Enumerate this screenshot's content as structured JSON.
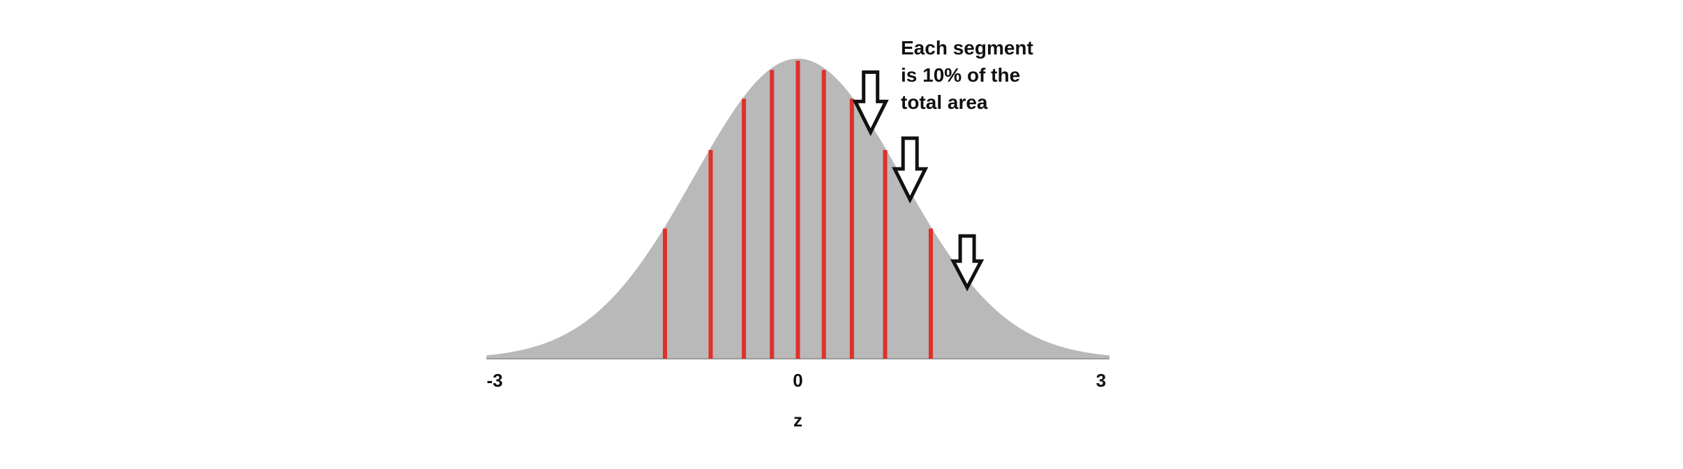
{
  "chart_data": {
    "type": "area",
    "title": "",
    "xlabel": "z",
    "ylabel": "",
    "xlim": [
      -3,
      3
    ],
    "ylim": [
      0,
      0.4
    ],
    "x_ticks": [
      {
        "value": -3,
        "label": "-3"
      },
      {
        "value": 0,
        "label": "0"
      },
      {
        "value": 3,
        "label": "3"
      }
    ],
    "curve": "standard normal density",
    "fill_color": "#b9b9b9",
    "divider_color": "#e0302a",
    "decile_boundaries": [
      -1.28,
      -0.84,
      -0.52,
      -0.25,
      0,
      0.25,
      0.52,
      0.84,
      1.28
    ],
    "annotation": {
      "lines": [
        "Each segment",
        "is 10% of the",
        "total area"
      ],
      "arrow_targets_z": [
        0.7,
        1.08,
        1.63
      ]
    },
    "grid": false,
    "legend": "none"
  }
}
